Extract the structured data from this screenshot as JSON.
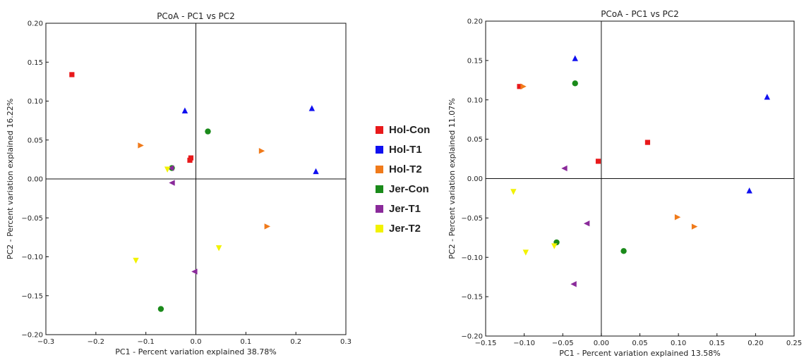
{
  "legend": {
    "items": [
      {
        "label": "Hol-Con",
        "color": "#e8191b",
        "marker": "square"
      },
      {
        "label": "Hol-T1",
        "color": "#1010f0",
        "marker": "triangle-up"
      },
      {
        "label": "Hol-T2",
        "color": "#f07a1a",
        "marker": "triangle-right"
      },
      {
        "label": "Jer-Con",
        "color": "#1a8a1a",
        "marker": "circle"
      },
      {
        "label": "Jer-T1",
        "color": "#8a2a9a",
        "marker": "triangle-left"
      },
      {
        "label": "Jer-T2",
        "color": "#f2f200",
        "marker": "triangle-down"
      }
    ]
  },
  "chart_data": [
    {
      "type": "scatter",
      "title": "PCoA - PC1 vs PC2",
      "xlabel": "PC1 - Percent variation explained 38.78%",
      "ylabel": "PC2 - Percent variation explained 16.22%",
      "xlim": [
        -0.3,
        0.3
      ],
      "ylim": [
        -0.2,
        0.2
      ],
      "xticks": [
        "−0.3",
        "−0.2",
        "−0.1",
        "0.0",
        "0.1",
        "0.2",
        "0.3"
      ],
      "yticks": [
        "0.20",
        "0.15",
        "0.10",
        "0.05",
        "0.00",
        "−0.05",
        "−0.10",
        "−0.15",
        "−0.20"
      ],
      "xtick_values": [
        -0.3,
        -0.2,
        -0.1,
        0.0,
        0.1,
        0.2,
        0.3
      ],
      "ytick_values": [
        0.2,
        0.15,
        0.1,
        0.05,
        0.0,
        -0.05,
        -0.1,
        -0.15,
        -0.2
      ],
      "zero_lines": true,
      "series": [
        {
          "name": "Hol-Con",
          "points": [
            [
              -0.248,
              0.134
            ],
            [
              -0.01,
              0.027
            ],
            [
              -0.012,
              0.024
            ]
          ]
        },
        {
          "name": "Hol-T1",
          "points": [
            [
              -0.022,
              0.088
            ],
            [
              0.232,
              0.091
            ],
            [
              0.24,
              0.01
            ]
          ]
        },
        {
          "name": "Hol-T2",
          "points": [
            [
              -0.11,
              0.043
            ],
            [
              0.132,
              0.036
            ],
            [
              0.143,
              -0.061
            ]
          ]
        },
        {
          "name": "Jer-Con",
          "points": [
            [
              0.024,
              0.061
            ],
            [
              -0.048,
              0.014
            ],
            [
              -0.07,
              -0.167
            ]
          ]
        },
        {
          "name": "Jer-T1",
          "points": [
            [
              -0.05,
              0.014
            ],
            [
              -0.048,
              -0.005
            ],
            [
              -0.003,
              -0.119
            ]
          ]
        },
        {
          "name": "Jer-T2",
          "points": [
            [
              -0.057,
              0.012
            ],
            [
              0.046,
              -0.089
            ],
            [
              -0.12,
              -0.105
            ]
          ]
        }
      ]
    },
    {
      "type": "scatter",
      "title": "PCoA - PC1 vs PC2",
      "xlabel": "PC1 - Percent variation explained 13.58%",
      "ylabel": "PC2 - Percent variation explained 11.07%",
      "xlim": [
        -0.15,
        0.25
      ],
      "ylim": [
        -0.2,
        0.2
      ],
      "xticks": [
        "−0.15",
        "−0.10",
        "−0.05",
        "0.00",
        "0.05",
        "0.10",
        "0.15",
        "0.20",
        "0.25"
      ],
      "yticks": [
        "0.20",
        "0.15",
        "0.10",
        "0.05",
        "0.00",
        "−0.05",
        "−0.10",
        "−0.15",
        "−0.20"
      ],
      "xtick_values": [
        -0.15,
        -0.1,
        -0.05,
        0.0,
        0.05,
        0.1,
        0.15,
        0.2,
        0.25
      ],
      "ytick_values": [
        0.2,
        0.15,
        0.1,
        0.05,
        0.0,
        -0.05,
        -0.1,
        -0.15,
        -0.2
      ],
      "zero_lines": true,
      "series": [
        {
          "name": "Hol-Con",
          "points": [
            [
              -0.106,
              0.117
            ],
            [
              -0.004,
              0.022
            ],
            [
              0.06,
              0.046
            ]
          ]
        },
        {
          "name": "Hol-T1",
          "points": [
            [
              -0.034,
              0.153
            ],
            [
              0.215,
              0.104
            ],
            [
              0.192,
              -0.015
            ]
          ]
        },
        {
          "name": "Hol-T2",
          "points": [
            [
              -0.101,
              0.117
            ],
            [
              0.099,
              -0.049
            ],
            [
              0.121,
              -0.061
            ]
          ]
        },
        {
          "name": "Jer-Con",
          "points": [
            [
              -0.034,
              0.121
            ],
            [
              -0.058,
              -0.081
            ],
            [
              0.029,
              -0.092
            ]
          ]
        },
        {
          "name": "Jer-T1",
          "points": [
            [
              -0.048,
              0.013
            ],
            [
              -0.019,
              -0.057
            ],
            [
              -0.036,
              -0.134
            ]
          ]
        },
        {
          "name": "Jer-T2",
          "points": [
            [
              -0.114,
              -0.017
            ],
            [
              -0.098,
              -0.094
            ],
            [
              -0.061,
              -0.086
            ]
          ]
        }
      ]
    }
  ]
}
